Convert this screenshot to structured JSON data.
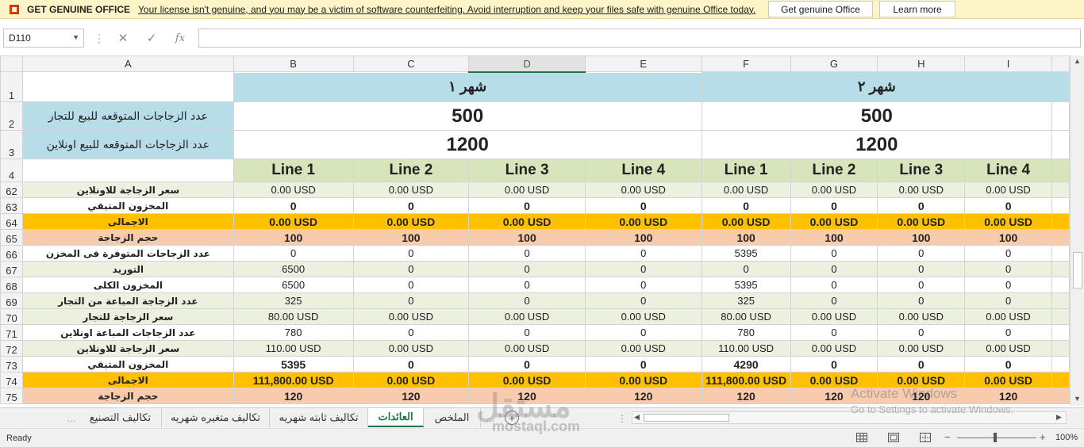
{
  "license_bar": {
    "title": "GET GENUINE OFFICE",
    "message": "Your license isn't genuine, and you may be a victim of software counterfeiting. Avoid interruption and keep your files safe with genuine Office today.",
    "get_genuine_label": "Get genuine Office",
    "learn_more_label": "Learn more"
  },
  "formula_bar": {
    "name_box": "D110",
    "cancel_glyph": "✕",
    "enter_glyph": "✓",
    "function_glyph": "fx",
    "formula": ""
  },
  "columns": [
    "A",
    "B",
    "C",
    "D",
    "E",
    "F",
    "G",
    "H",
    "I"
  ],
  "header_rows": {
    "r1": {
      "num": "1",
      "month1": "شهر ١",
      "month2": "شهر ٢"
    },
    "r2": {
      "num": "2",
      "label": "عدد الزجاجات المتوقعه للبيع للتجار",
      "v1": "500",
      "v2": "500"
    },
    "r3": {
      "num": "3",
      "label": "عدد الزجاجات المتوقعه للبيع اونلاين",
      "v1": "1200",
      "v2": "1200"
    },
    "r4": {
      "num": "4",
      "lines": [
        "Line 1",
        "Line 2",
        "Line 3",
        "Line 4",
        "Line 1",
        "Line 2",
        "Line 3",
        "Line 4"
      ]
    }
  },
  "rows": [
    {
      "num": "62",
      "label": "سعر الزجاجة للاونلاين",
      "style": "lightgreen",
      "bold": false,
      "cells": [
        "0.00 USD",
        "0.00 USD",
        "0.00 USD",
        "0.00 USD",
        "0.00 USD",
        "0.00 USD",
        "0.00 USD",
        "0.00 USD"
      ]
    },
    {
      "num": "63",
      "label": "المخزون المتبقي",
      "style": "white",
      "bold": true,
      "cells": [
        "0",
        "0",
        "0",
        "0",
        "0",
        "0",
        "0",
        "0"
      ]
    },
    {
      "num": "64",
      "label": "الاجمالى",
      "style": "gold",
      "bold": true,
      "cells": [
        "0.00 USD",
        "0.00 USD",
        "0.00 USD",
        "0.00 USD",
        "0.00 USD",
        "0.00 USD",
        "0.00 USD",
        "0.00 USD"
      ]
    },
    {
      "num": "65",
      "label": "حجم الزجاجة",
      "style": "peach",
      "bold": true,
      "cells": [
        "100",
        "100",
        "100",
        "100",
        "100",
        "100",
        "100",
        "100"
      ]
    },
    {
      "num": "66",
      "label": "عدد الزجاجات المتوفرة فى المخزن",
      "style": "white",
      "bold": false,
      "cells": [
        "0",
        "0",
        "0",
        "0",
        "5395",
        "0",
        "0",
        "0"
      ]
    },
    {
      "num": "67",
      "label": "التوريد",
      "style": "lightgreen",
      "bold": false,
      "cells": [
        "6500",
        "0",
        "0",
        "0",
        "0",
        "0",
        "0",
        "0"
      ]
    },
    {
      "num": "68",
      "label": "المخزون الكلى",
      "style": "white",
      "bold": false,
      "cells": [
        "6500",
        "0",
        "0",
        "0",
        "5395",
        "0",
        "0",
        "0"
      ]
    },
    {
      "num": "69",
      "label": "عدد الزجاجة المباعة من التجار",
      "style": "lightgreen",
      "bold": false,
      "cells": [
        "325",
        "0",
        "0",
        "0",
        "325",
        "0",
        "0",
        "0"
      ]
    },
    {
      "num": "70",
      "label": "سعر الزجاجة للتجار",
      "style": "lightgreen",
      "bold": false,
      "cells": [
        "80.00 USD",
        "0.00 USD",
        "0.00 USD",
        "0.00 USD",
        "80.00 USD",
        "0.00 USD",
        "0.00 USD",
        "0.00 USD"
      ]
    },
    {
      "num": "71",
      "label": "عدد الزجاجات المباعة اونلاين",
      "style": "white",
      "bold": false,
      "cells": [
        "780",
        "0",
        "0",
        "0",
        "780",
        "0",
        "0",
        "0"
      ]
    },
    {
      "num": "72",
      "label": "سعر الزجاجة للاونلاين",
      "style": "lightgreen",
      "bold": false,
      "cells": [
        "110.00 USD",
        "0.00 USD",
        "0.00 USD",
        "0.00 USD",
        "110.00 USD",
        "0.00 USD",
        "0.00 USD",
        "0.00 USD"
      ]
    },
    {
      "num": "73",
      "label": "المخزون المتبقي",
      "style": "white",
      "bold": true,
      "cells": [
        "5395",
        "0",
        "0",
        "0",
        "4290",
        "0",
        "0",
        "0"
      ]
    },
    {
      "num": "74",
      "label": "الاجمالى",
      "style": "gold",
      "bold": true,
      "cells": [
        "111,800.00 USD",
        "0.00 USD",
        "0.00 USD",
        "0.00 USD",
        "111,800.00 USD",
        "0.00 USD",
        "0.00 USD",
        "0.00 USD"
      ]
    },
    {
      "num": "75",
      "label": "حجم الزجاجة",
      "style": "peach",
      "bold": true,
      "cells": [
        "120",
        "120",
        "120",
        "120",
        "120",
        "120",
        "120",
        "120"
      ]
    }
  ],
  "sheet_tabs": [
    "تكاليف التصنيع",
    "تكاليف متغيره شهريه",
    "تكاليف ثابته شهريه",
    "العائدات",
    "الملخص"
  ],
  "active_tab": "العائدات",
  "status": {
    "ready": "Ready",
    "zoom": "100%",
    "zoom_level": 1.0
  },
  "activation": {
    "line1": "Activate Windows",
    "line2": "Go to Settings to activate Windows."
  },
  "watermark_logo": "مستقل",
  "watermark_site": "mostaql.com"
}
